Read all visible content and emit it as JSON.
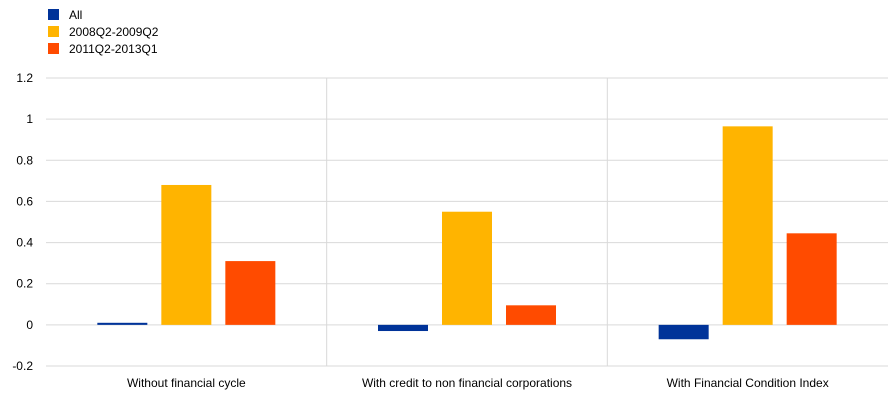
{
  "chart_data": {
    "type": "bar",
    "title": "",
    "xlabel": "",
    "ylabel": "",
    "categories": [
      "Without financial cycle",
      "With credit to non financial corporations",
      "With Financial Condition Index"
    ],
    "series": [
      {
        "name": "All",
        "color": "#003399",
        "values": [
          0.01,
          -0.03,
          -0.07
        ]
      },
      {
        "name": "2008Q2-2009Q2",
        "color": "#FFB400",
        "values": [
          0.68,
          0.55,
          0.965
        ]
      },
      {
        "name": "2011Q2-2013Q1",
        "color": "#FF4B00",
        "values": [
          0.31,
          0.095,
          0.445
        ]
      }
    ],
    "ylim": [
      -0.2,
      1.2
    ],
    "yticks": [
      "-0.2",
      "0",
      "0.2",
      "0.4",
      "0.6",
      "0.8",
      "1",
      "1.2"
    ],
    "grid": true,
    "legend_position": "top-left"
  }
}
